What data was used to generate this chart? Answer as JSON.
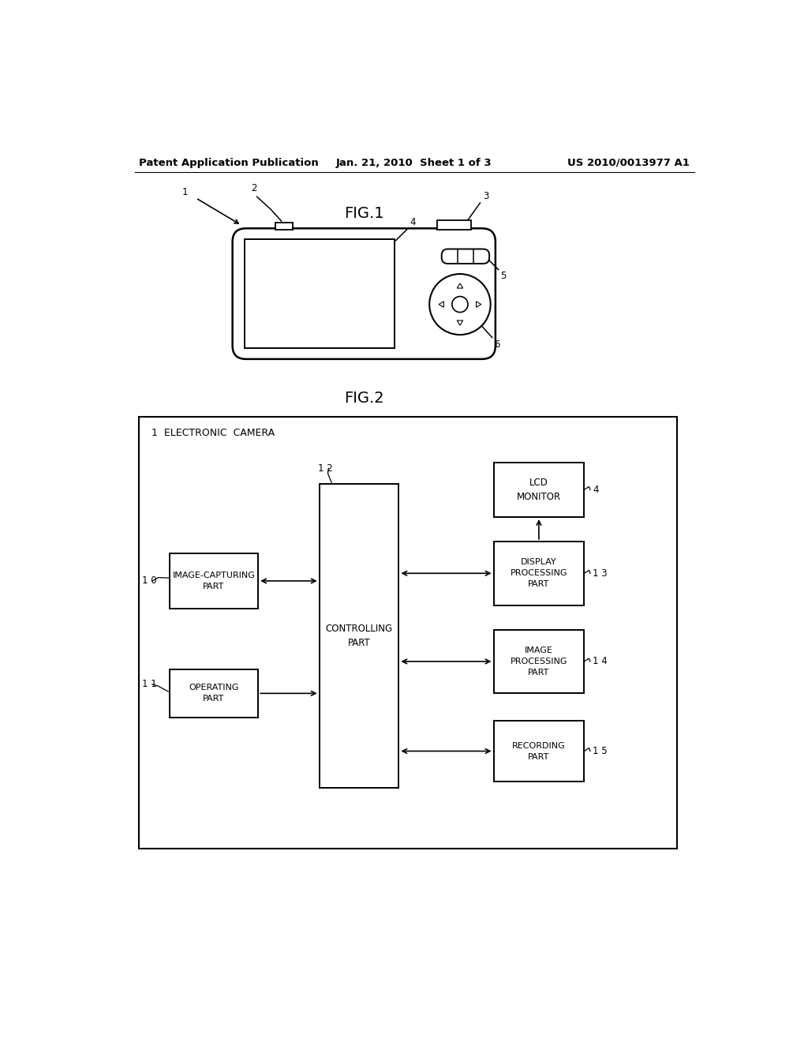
{
  "bg_color": "#ffffff",
  "header_left": "Patent Application Publication",
  "header_center": "Jan. 21, 2010  Sheet 1 of 3",
  "header_right": "US 2010/0013977 A1",
  "fig1_title": "FIG.1",
  "fig2_title": "FIG.2",
  "line_color": "#000000",
  "text_color": "#000000",
  "font_size_header": 9.5,
  "font_size_ref": 8.5,
  "font_size_node": 7.8,
  "font_size_fig_title": 14
}
